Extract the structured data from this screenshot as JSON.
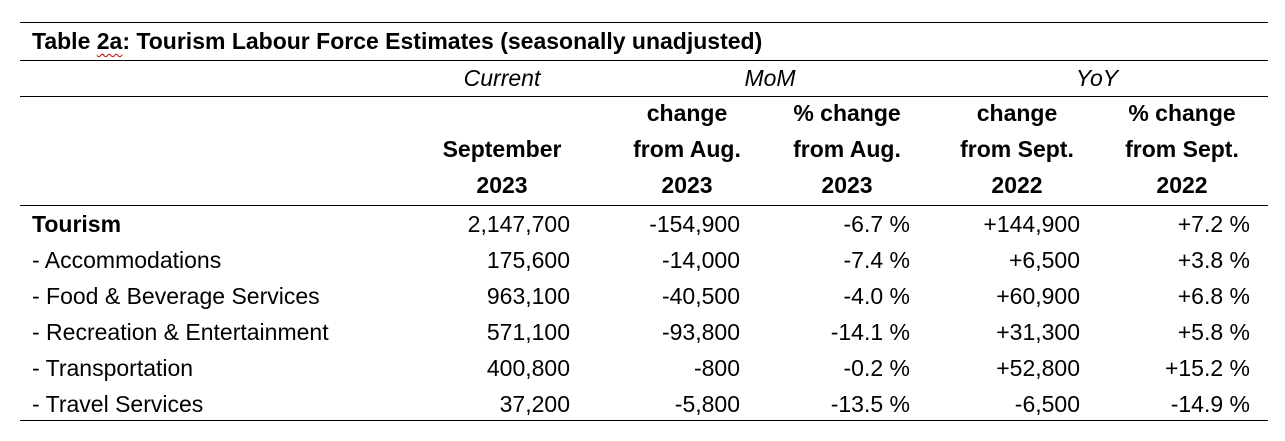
{
  "table": {
    "title_prefix": "Table ",
    "title_id": "2a",
    "title_rest": ": Tourism Labour Force Estimates (seasonally unadjusted)",
    "group_headers": {
      "current": "Current",
      "mom": "MoM",
      "yoy": "YoY"
    },
    "column_headers": [
      [
        "September",
        "2023"
      ],
      [
        "change",
        "from Aug.",
        "2023"
      ],
      [
        "% change",
        "from Aug.",
        "2023"
      ],
      [
        "change",
        "from Sept.",
        "2022"
      ],
      [
        "% change",
        "from Sept.",
        "2022"
      ]
    ],
    "rows": [
      {
        "label": "Tourism",
        "bold": true,
        "current": "2,147,700",
        "mom_change": "-154,900",
        "mom_pct": "-6.7 %",
        "yoy_change": "+144,900",
        "yoy_pct": "+7.2 %"
      },
      {
        "label": "- Accommodations",
        "bold": false,
        "current": "175,600",
        "mom_change": "-14,000",
        "mom_pct": "-7.4 %",
        "yoy_change": "+6,500",
        "yoy_pct": "+3.8 %"
      },
      {
        "label": "- Food & Beverage Services",
        "bold": false,
        "current": "963,100",
        "mom_change": "-40,500",
        "mom_pct": "-4.0 %",
        "yoy_change": "+60,900",
        "yoy_pct": "+6.8 %"
      },
      {
        "label": "- Recreation & Entertainment",
        "bold": false,
        "current": "571,100",
        "mom_change": "-93,800",
        "mom_pct": "-14.1 %",
        "yoy_change": "+31,300",
        "yoy_pct": "+5.8 %"
      },
      {
        "label": "- Transportation",
        "bold": false,
        "current": "400,800",
        "mom_change": "-800",
        "mom_pct": "-0.2 %",
        "yoy_change": "+52,800",
        "yoy_pct": "+15.2 %"
      },
      {
        "label": "- Travel Services",
        "bold": false,
        "current": "37,200",
        "mom_change": "-5,800",
        "mom_pct": "-13.5 %",
        "yoy_change": "-6,500",
        "yoy_pct": "-14.9 %"
      }
    ]
  }
}
